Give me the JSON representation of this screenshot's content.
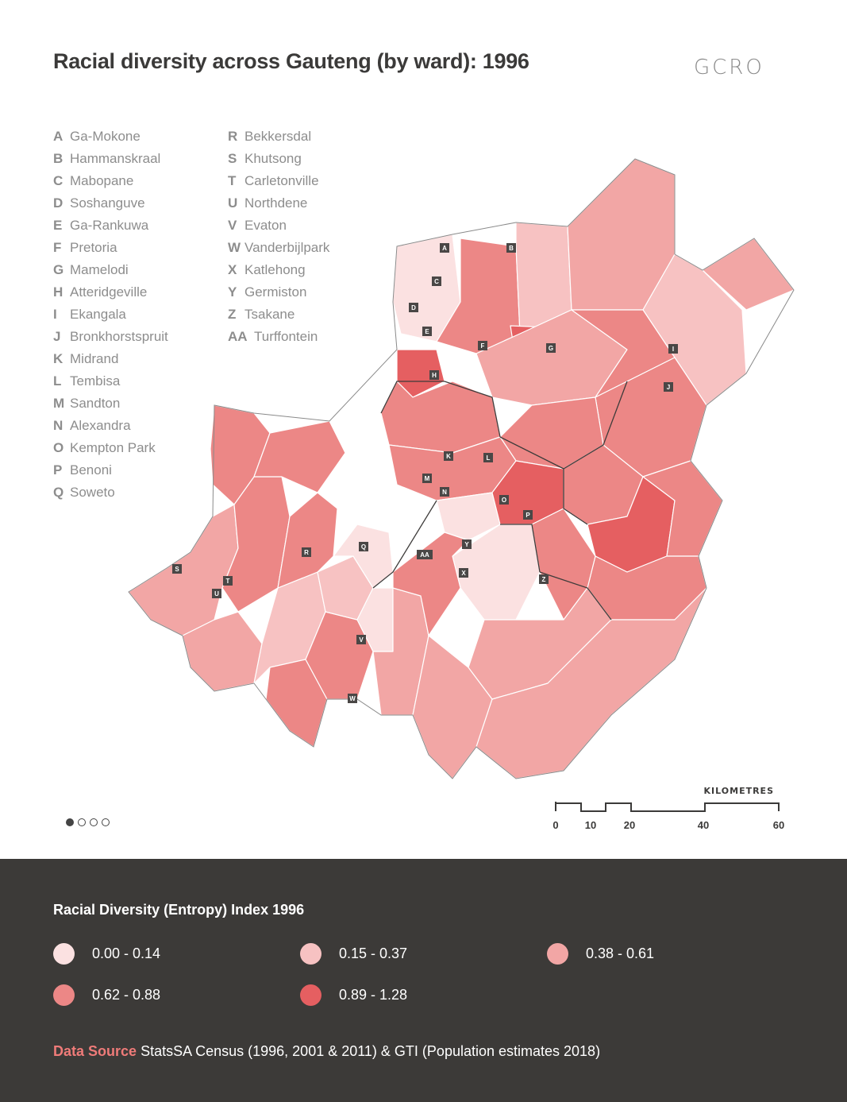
{
  "title": "Racial diversity across Gauteng (by ward): 1996",
  "logo": "GCRO",
  "places": [
    {
      "code": "A",
      "name": "Ga-Mokone"
    },
    {
      "code": "B",
      "name": "Hammanskraal"
    },
    {
      "code": "C",
      "name": "Mabopane"
    },
    {
      "code": "D",
      "name": "Soshanguve"
    },
    {
      "code": "E",
      "name": "Ga-Rankuwa"
    },
    {
      "code": "F",
      "name": "Pretoria"
    },
    {
      "code": "G",
      "name": "Mamelodi"
    },
    {
      "code": "H",
      "name": "Atteridgeville"
    },
    {
      "code": "I",
      "name": "Ekangala"
    },
    {
      "code": "J",
      "name": "Bronkhorstspruit"
    },
    {
      "code": "K",
      "name": "Midrand"
    },
    {
      "code": "L",
      "name": "Tembisa"
    },
    {
      "code": "M",
      "name": "Sandton"
    },
    {
      "code": "N",
      "name": "Alexandra"
    },
    {
      "code": "O",
      "name": "Kempton Park"
    },
    {
      "code": "P",
      "name": "Benoni"
    },
    {
      "code": "Q",
      "name": "Soweto"
    },
    {
      "code": "R",
      "name": "Bekkersdal"
    },
    {
      "code": "S",
      "name": "Khutsong"
    },
    {
      "code": "T",
      "name": "Carletonville"
    },
    {
      "code": "U",
      "name": "Northdene"
    },
    {
      "code": "V",
      "name": "Evaton"
    },
    {
      "code": "W",
      "name": "Vanderbijlpark"
    },
    {
      "code": "X",
      "name": "Katlehong"
    },
    {
      "code": "Y",
      "name": "Germiston"
    },
    {
      "code": "Z",
      "name": "Tsakane"
    },
    {
      "code": "AA",
      "name": "Turffontein"
    }
  ],
  "scale_bar": {
    "title": "KILOMETRES",
    "ticks": [
      "0",
      "10",
      "20",
      "40",
      "60"
    ]
  },
  "pager": {
    "count": 4,
    "active": 1
  },
  "legend": {
    "title": "Racial Diversity (Entropy) Index 1996",
    "items": [
      {
        "label": "0.00 - 0.14",
        "color": "#fbe1e1"
      },
      {
        "label": "0.15 - 0.37",
        "color": "#f7c2c2"
      },
      {
        "label": "0.38 - 0.61",
        "color": "#f2a6a5"
      },
      {
        "label": "0.62 - 0.88",
        "color": "#ec8786"
      },
      {
        "label": "0.89 - 1.28",
        "color": "#e55f61"
      }
    ]
  },
  "source": {
    "label": "Data Source",
    "text": "StatsSA Census (1996, 2001 & 2011) & GTI (Population estimates 2018)"
  }
}
